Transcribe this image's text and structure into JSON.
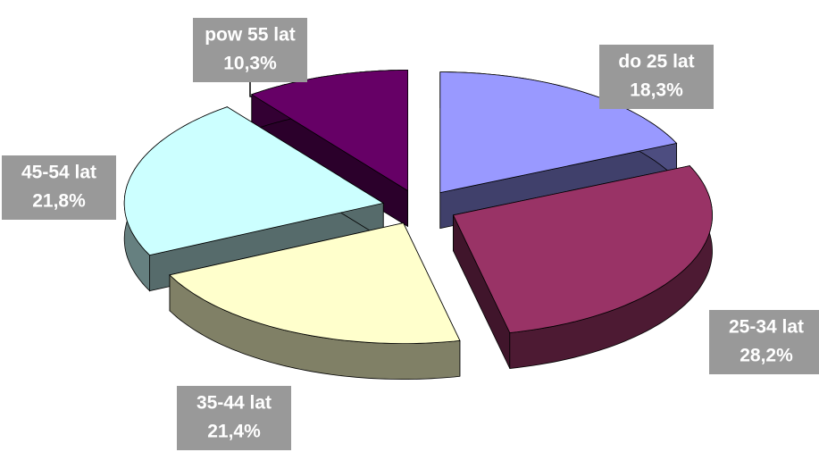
{
  "chart_data": {
    "type": "pie3d",
    "categories": [
      "do 25 lat",
      "25-34 lat",
      "35-44 lat",
      "45-54 lat",
      "pow 55 lat"
    ],
    "values": [
      18.3,
      28.2,
      21.4,
      21.8,
      10.3
    ],
    "value_labels": [
      "18,3%",
      "28,2%",
      "21,4%",
      "21,8%",
      "10,3%"
    ],
    "colors": [
      "#9999ff",
      "#993366",
      "#ffffcc",
      "#ccffff",
      "#660066"
    ]
  }
}
